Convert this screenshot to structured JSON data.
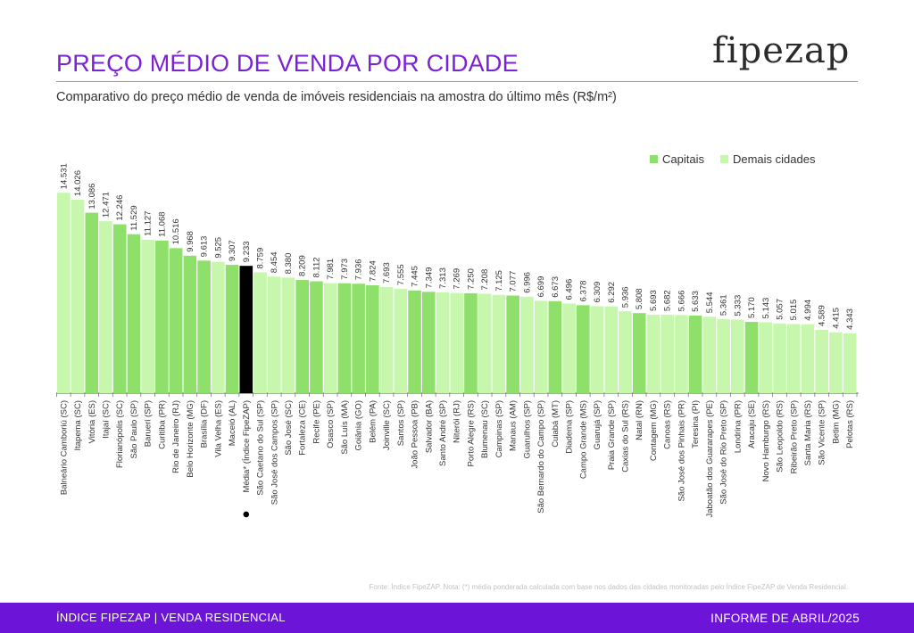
{
  "header": {
    "title": "PREÇO MÉDIO DE VENDA POR CIDADE",
    "logo": "fipezap",
    "subtitle": "Comparativo do preço médio de venda de imóveis residenciais na amostra do último mês (R$/m²)"
  },
  "colors": {
    "capital": "#8ee06a",
    "other": "#c6f7ad",
    "average": "#000000",
    "title": "#7a22d6",
    "footer": "#6d14d9"
  },
  "chart_data": {
    "type": "bar",
    "title": "PREÇO MÉDIO DE VENDA POR CIDADE",
    "ylabel": "R$/m²",
    "ylim": [
      0,
      15000
    ],
    "legend": [
      "Capitais",
      "Demais cidades"
    ],
    "legend_position": "top-right",
    "categories": [
      "Balneário Camboriú (SC)",
      "Itapema (SC)",
      "Vitória (ES)",
      "Itajaí (SC)",
      "Florianópolis (SC)",
      "São Paulo (SP)",
      "Barueri (SP)",
      "Curitiba (PR)",
      "Rio de Janeiro (RJ)",
      "Belo Horizonte (MG)",
      "Brasília (DF)",
      "Vila Velha (ES)",
      "Maceió (AL)",
      "Média* (Índice FipeZAP)",
      "São Caetano do Sul (SP)",
      "São José dos Campos (SP)",
      "São José (SC)",
      "Fortaleza (CE)",
      "Recife (PE)",
      "Osasco (SP)",
      "São Luís (MA)",
      "Goiânia (GO)",
      "Belém (PA)",
      "Joinville (SC)",
      "Santos (SP)",
      "João Pessoa (PB)",
      "Salvador (BA)",
      "Santo André (SP)",
      "Niterói (RJ)",
      "Porto Alegre (RS)",
      "Blumenau (SC)",
      "Campinas (SP)",
      "Manaus (AM)",
      "Guarulhos (SP)",
      "São Bernardo do Campo (SP)",
      "Cuiabá (MT)",
      "Diadema (SP)",
      "Campo Grande (MS)",
      "Guarujá (SP)",
      "Praia Grande (SP)",
      "Caxias do Sul (RS)",
      "Natal (RN)",
      "Contagem (MG)",
      "Canoas (RS)",
      "São José dos Pinhais (PR)",
      "Teresina (PI)",
      "Jaboatão dos Guararapes (PE)",
      "São José do Rio Preto (SP)",
      "Londrina (PR)",
      "Aracaju (SE)",
      "Novo Hamburgo (RS)",
      "São Leopoldo (RS)",
      "Ribeirão Preto (SP)",
      "Santa Maria (RS)",
      "São Vicente (SP)",
      "Betim (MG)",
      "Pelotas (RS)"
    ],
    "values": [
      14531,
      14026,
      13086,
      12471,
      12246,
      11529,
      11127,
      11068,
      10516,
      9968,
      9613,
      9525,
      9307,
      9233,
      8759,
      8454,
      8380,
      8209,
      8112,
      7981,
      7973,
      7936,
      7824,
      7693,
      7555,
      7445,
      7349,
      7313,
      7269,
      7250,
      7208,
      7125,
      7077,
      6996,
      6699,
      6673,
      6496,
      6378,
      6309,
      6292,
      5936,
      5808,
      5693,
      5682,
      5666,
      5633,
      5544,
      5361,
      5333,
      5170,
      5143,
      5057,
      5015,
      4994,
      4589,
      4415,
      4343
    ],
    "value_labels": [
      "14.531",
      "14.026",
      "13.086",
      "12.471",
      "12.246",
      "11.529",
      "11.127",
      "11.068",
      "10.516",
      "9.968",
      "9.613",
      "9.525",
      "9.307",
      "9.233",
      "8.759",
      "8.454",
      "8.380",
      "8.209",
      "8.112",
      "7.981",
      "7.973",
      "7.936",
      "7.824",
      "7.693",
      "7.555",
      "7.445",
      "7.349",
      "7.313",
      "7.269",
      "7.250",
      "7.208",
      "7.125",
      "7.077",
      "6.996",
      "6.699",
      "6.673",
      "6.496",
      "6.378",
      "6.309",
      "6.292",
      "5.936",
      "5.808",
      "5.693",
      "5.682",
      "5.666",
      "5.633",
      "5.544",
      "5.361",
      "5.333",
      "5.170",
      "5.143",
      "5.057",
      "5.015",
      "4.994",
      "4.589",
      "4.415",
      "4.343"
    ],
    "kinds": [
      "other",
      "other",
      "capital",
      "other",
      "capital",
      "capital",
      "other",
      "capital",
      "capital",
      "capital",
      "capital",
      "other",
      "capital",
      "average",
      "other",
      "other",
      "other",
      "capital",
      "capital",
      "other",
      "capital",
      "capital",
      "capital",
      "other",
      "other",
      "capital",
      "capital",
      "other",
      "other",
      "capital",
      "other",
      "other",
      "capital",
      "other",
      "other",
      "capital",
      "other",
      "capital",
      "other",
      "other",
      "other",
      "capital",
      "other",
      "other",
      "other",
      "capital",
      "other",
      "other",
      "other",
      "capital",
      "other",
      "other",
      "other",
      "other",
      "other",
      "other",
      "other"
    ]
  },
  "legend": {
    "capital_label": "Capitais",
    "other_label": "Demais cidades"
  },
  "source_note": "Fonte: Índice FipeZAP. Nota: (*) média ponderada calculada com base nos dados das cidades monitoradas pelo Índice FipeZAP de Venda Residencial.",
  "footer": {
    "left": "ÍNDICE FIPEZAP | VENDA RESIDENCIAL",
    "right": "INFORME DE ABRIL/2025"
  }
}
